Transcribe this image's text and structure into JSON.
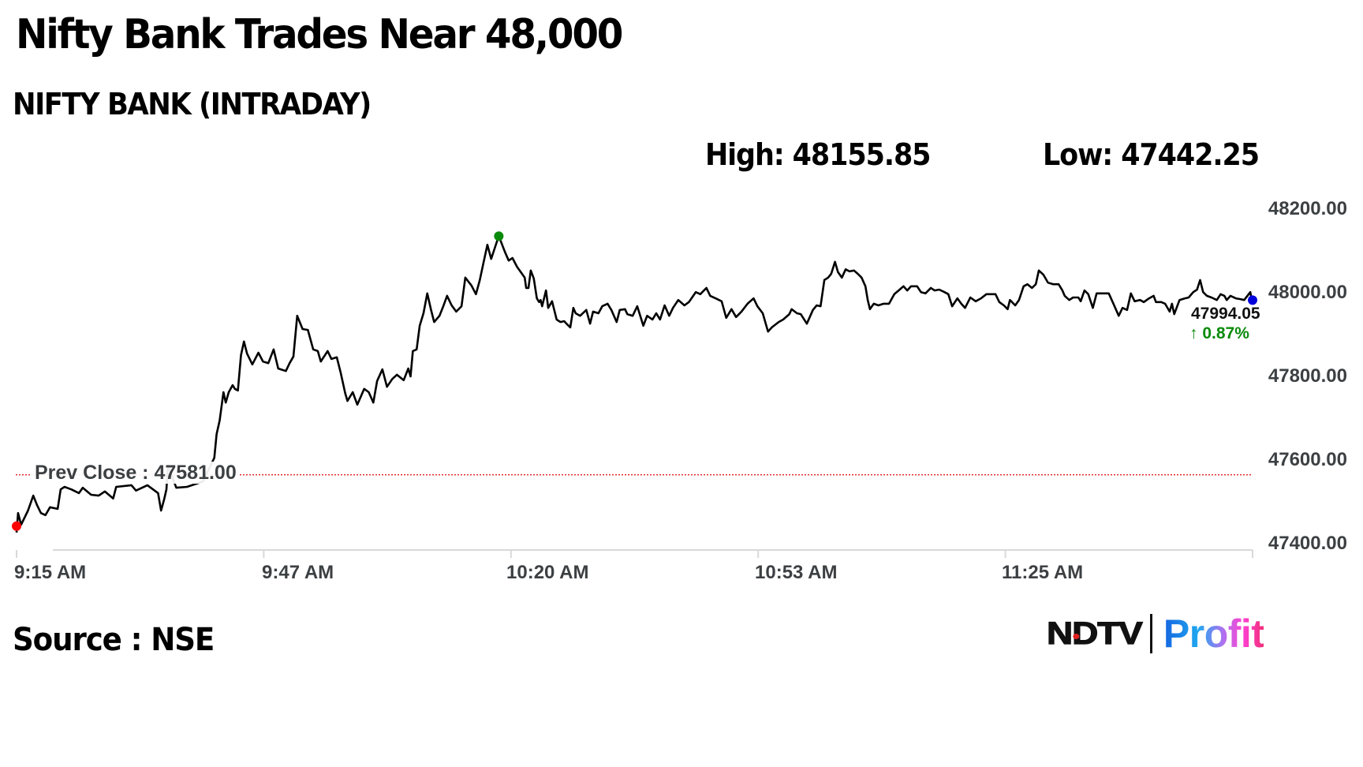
{
  "header": {
    "title": "Nifty Bank Trades Near 48,000",
    "subtitle": "NIFTY BANK (INTRADAY)",
    "high_label": "High: 48155.85",
    "low_label": "Low: 47442.25"
  },
  "chart": {
    "prev_close_label": "Prev Close : 47581.00",
    "current_value": "47994.05",
    "current_change": "↑ 0.87%",
    "colors": {
      "line": "#000000",
      "prev_close_line": "#e02020",
      "low_marker": "#ff0000",
      "high_marker": "#0a8a0a",
      "current_marker": "#0000dd",
      "axis": "#d9d9d9",
      "label_text": "#3c4043",
      "change_up": "#0a8a0a"
    }
  },
  "footer": {
    "source": "Source : NSE",
    "logo_left": "NDTV",
    "logo_right": "Profit"
  },
  "chart_data": {
    "type": "line",
    "title": "NIFTY BANK (INTRADAY)",
    "xlabel": "",
    "ylabel": "",
    "x_tick_labels": [
      "9:15 AM",
      "9:47 AM",
      "10:20 AM",
      "10:53 AM",
      "11:25 AM"
    ],
    "x_tick_minutes": [
      0,
      32.5,
      65,
      97.5,
      130
    ],
    "y_tick_labels": [
      "48200.00",
      "48000.00",
      "47800.00",
      "47600.00",
      "47400.00"
    ],
    "y_ticks": [
      48200,
      48000,
      47800,
      47600,
      47400
    ],
    "ylim": [
      47400,
      48200
    ],
    "grid": false,
    "legend": null,
    "high": 48155.85,
    "low": 47442.25,
    "prev_close": 47581.0,
    "last": 47994.05,
    "change_pct": 0.87,
    "series": [
      {
        "name": "NIFTY BANK",
        "x_unit": "minutes since 9:15 AM",
        "points": [
          [
            0,
            47442
          ],
          [
            0.2,
            47489
          ],
          [
            0.6,
            47461
          ],
          [
            1.5,
            47495
          ],
          [
            2.2,
            47531
          ],
          [
            2.7,
            47508
          ],
          [
            3.2,
            47489
          ],
          [
            3.8,
            47484
          ],
          [
            4.4,
            47503
          ],
          [
            5.4,
            47499
          ],
          [
            5.8,
            47546
          ],
          [
            6.3,
            47552
          ],
          [
            7.2,
            47546
          ],
          [
            8.2,
            47537
          ],
          [
            8.7,
            47550
          ],
          [
            9.8,
            47533
          ],
          [
            10.8,
            47531
          ],
          [
            11.6,
            47541
          ],
          [
            12.7,
            47524
          ],
          [
            13.1,
            47552
          ],
          [
            15.1,
            47556
          ],
          [
            15.7,
            47543
          ],
          [
            17.2,
            47556
          ],
          [
            18.6,
            47537
          ],
          [
            19.0,
            47495
          ],
          [
            19.4,
            47522
          ],
          [
            19.7,
            47546
          ],
          [
            19.9,
            47603
          ],
          [
            21.0,
            47550
          ],
          [
            22.4,
            47552
          ],
          [
            24.5,
            47565
          ],
          [
            26.0,
            47622
          ],
          [
            26.3,
            47679
          ],
          [
            26.7,
            47712
          ],
          [
            27.2,
            47780
          ],
          [
            27.5,
            47755
          ],
          [
            27.9,
            47780
          ],
          [
            28.4,
            47797
          ],
          [
            28.7,
            47788
          ],
          [
            29.1,
            47784
          ],
          [
            29.5,
            47869
          ],
          [
            29.9,
            47902
          ],
          [
            30.3,
            47873
          ],
          [
            31.0,
            47847
          ],
          [
            31.8,
            47875
          ],
          [
            32.4,
            47854
          ],
          [
            33.1,
            47850
          ],
          [
            33.8,
            47883
          ],
          [
            34.4,
            47837
          ],
          [
            35.4,
            47831
          ],
          [
            35.9,
            47850
          ],
          [
            36.4,
            47866
          ],
          [
            36.9,
            47964
          ],
          [
            37.6,
            47932
          ],
          [
            38.3,
            47930
          ],
          [
            39.0,
            47883
          ],
          [
            39.6,
            47879
          ],
          [
            40.0,
            47854
          ],
          [
            40.9,
            47879
          ],
          [
            41.4,
            47860
          ],
          [
            42.1,
            47864
          ],
          [
            42.6,
            47828
          ],
          [
            43.2,
            47778
          ],
          [
            43.5,
            47759
          ],
          [
            44.2,
            47780
          ],
          [
            44.8,
            47750
          ],
          [
            45.7,
            47788
          ],
          [
            46.3,
            47780
          ],
          [
            46.9,
            47755
          ],
          [
            47.4,
            47807
          ],
          [
            48.1,
            47835
          ],
          [
            48.7,
            47793
          ],
          [
            49.4,
            47812
          ],
          [
            50.0,
            47822
          ],
          [
            50.9,
            47809
          ],
          [
            51.5,
            47837
          ],
          [
            51.8,
            47818
          ],
          [
            52.1,
            47879
          ],
          [
            52.6,
            47883
          ],
          [
            53.0,
            47940
          ],
          [
            53.5,
            47970
          ],
          [
            54.0,
            48018
          ],
          [
            54.5,
            47978
          ],
          [
            54.9,
            47949
          ],
          [
            55.6,
            47964
          ],
          [
            56.1,
            47987
          ],
          [
            56.6,
            48012
          ],
          [
            57.2,
            47989
          ],
          [
            57.8,
            47974
          ],
          [
            58.5,
            47987
          ],
          [
            59.0,
            48056
          ],
          [
            59.8,
            48037
          ],
          [
            60.4,
            48016
          ],
          [
            60.9,
            48050
          ],
          [
            61.3,
            48084
          ],
          [
            61.9,
            48135
          ],
          [
            62.4,
            48101
          ],
          [
            63.2,
            48145
          ],
          [
            63.4,
            48155.85
          ],
          [
            64.2,
            48118
          ],
          [
            64.7,
            48097
          ],
          [
            65.2,
            48103
          ],
          [
            65.8,
            48082
          ],
          [
            66.3,
            48069
          ],
          [
            66.8,
            48056
          ],
          [
            67.0,
            48031
          ],
          [
            67.3,
            48031
          ],
          [
            67.6,
            48073
          ],
          [
            68.0,
            48054
          ],
          [
            68.4,
            48006
          ],
          [
            68.7,
            47997
          ],
          [
            68.9,
            48002
          ],
          [
            69.1,
            47987
          ],
          [
            69.6,
            48025
          ],
          [
            69.7,
            48012
          ],
          [
            69.9,
            47983
          ],
          [
            70.4,
            47999
          ],
          [
            71.0,
            47955
          ],
          [
            71.5,
            47949
          ],
          [
            72.0,
            47951
          ],
          [
            72.3,
            47945
          ],
          [
            72.8,
            47936
          ],
          [
            73.2,
            47983
          ],
          [
            73.5,
            47970
          ],
          [
            74.1,
            47964
          ],
          [
            74.9,
            47978
          ],
          [
            75.4,
            47945
          ],
          [
            75.8,
            47974
          ],
          [
            76.5,
            47970
          ],
          [
            77.0,
            47987
          ],
          [
            77.7,
            47993
          ],
          [
            78.2,
            47978
          ],
          [
            78.9,
            47949
          ],
          [
            79.3,
            47978
          ],
          [
            80.0,
            47980
          ],
          [
            80.3,
            47968
          ],
          [
            81.0,
            47964
          ],
          [
            81.6,
            47987
          ],
          [
            82.4,
            47940
          ],
          [
            82.9,
            47964
          ],
          [
            83.6,
            47955
          ],
          [
            84.1,
            47970
          ],
          [
            84.6,
            47955
          ],
          [
            85.2,
            47989
          ],
          [
            85.8,
            47964
          ],
          [
            86.3,
            47983
          ],
          [
            87.0,
            48002
          ],
          [
            87.8,
            47989
          ],
          [
            88.4,
            47997
          ],
          [
            89.3,
            48021
          ],
          [
            89.9,
            48016
          ],
          [
            90.7,
            48031
          ],
          [
            91.2,
            48012
          ],
          [
            91.9,
            48006
          ],
          [
            92.7,
            47999
          ],
          [
            93.3,
            47959
          ],
          [
            94.0,
            47980
          ],
          [
            94.6,
            47961
          ],
          [
            95.3,
            47974
          ],
          [
            96.1,
            47993
          ],
          [
            96.9,
            48006
          ],
          [
            97.4,
            47987
          ],
          [
            98.1,
            47970
          ],
          [
            98.8,
            47926
          ],
          [
            99.3,
            47936
          ],
          [
            100.2,
            47949
          ],
          [
            100.8,
            47955
          ],
          [
            101.6,
            47968
          ],
          [
            101.9,
            47980
          ],
          [
            102.6,
            47970
          ],
          [
            103.1,
            47968
          ],
          [
            103.9,
            47945
          ],
          [
            104.7,
            47978
          ],
          [
            105.2,
            47989
          ],
          [
            105.7,
            47987
          ],
          [
            106.2,
            48050
          ],
          [
            106.7,
            48056
          ],
          [
            107.1,
            48065
          ],
          [
            107.6,
            48094
          ],
          [
            108.0,
            48069
          ],
          [
            108.5,
            48056
          ],
          [
            109.0,
            48076
          ],
          [
            109.5,
            48071
          ],
          [
            110.1,
            48073
          ],
          [
            110.6,
            48065
          ],
          [
            111.1,
            48056
          ],
          [
            111.6,
            48035
          ],
          [
            111.9,
            48002
          ],
          [
            112.2,
            47980
          ],
          [
            112.7,
            47993
          ],
          [
            113.3,
            47989
          ],
          [
            114.0,
            47993
          ],
          [
            114.7,
            47993
          ],
          [
            115.4,
            48016
          ],
          [
            116.1,
            48027
          ],
          [
            116.6,
            48035
          ],
          [
            117.1,
            48025
          ],
          [
            117.6,
            48035
          ],
          [
            118.4,
            48035
          ],
          [
            118.9,
            48021
          ],
          [
            119.5,
            48018
          ],
          [
            120.2,
            48031
          ],
          [
            120.7,
            48025
          ],
          [
            121.3,
            48027
          ],
          [
            122.0,
            48021
          ],
          [
            122.5,
            48016
          ],
          [
            123.0,
            47987
          ],
          [
            123.7,
            48006
          ],
          [
            124.2,
            47993
          ],
          [
            124.7,
            47983
          ],
          [
            125.4,
            48008
          ],
          [
            126.1,
            47999
          ],
          [
            126.8,
            48006
          ],
          [
            127.5,
            48016
          ],
          [
            128.2,
            48016
          ],
          [
            128.7,
            48016
          ],
          [
            129.2,
            47997
          ],
          [
            129.8,
            47989
          ],
          [
            130.3,
            47980
          ],
          [
            130.6,
            48002
          ],
          [
            131.3,
            47989
          ],
          [
            131.8,
            48002
          ],
          [
            132.4,
            48035
          ],
          [
            132.9,
            48040
          ],
          [
            133.5,
            48031
          ],
          [
            134.0,
            48040
          ],
          [
            134.4,
            48073
          ],
          [
            135.0,
            48063
          ],
          [
            135.6,
            48044
          ],
          [
            136.3,
            48040
          ],
          [
            137.0,
            48040
          ],
          [
            137.5,
            48025
          ],
          [
            137.8,
            48012
          ],
          [
            138.4,
            48002
          ],
          [
            138.9,
            48008
          ],
          [
            139.6,
            48008
          ],
          [
            139.9,
            47999
          ],
          [
            140.4,
            48025
          ],
          [
            140.9,
            48016
          ],
          [
            141.5,
            47983
          ],
          [
            142.0,
            48018
          ],
          [
            142.7,
            48018
          ],
          [
            143.6,
            48018
          ],
          [
            144.3,
            47989
          ],
          [
            144.9,
            47964
          ],
          [
            145.4,
            47983
          ],
          [
            146.0,
            47978
          ],
          [
            146.5,
            48018
          ],
          [
            147.0,
            47999
          ],
          [
            147.7,
            48002
          ],
          [
            148.2,
            47997
          ],
          [
            148.9,
            48006
          ],
          [
            149.5,
            48012
          ],
          [
            149.8,
            47997
          ],
          [
            150.5,
            47997
          ],
          [
            151.0,
            47993
          ],
          [
            151.6,
            47974
          ],
          [
            151.9,
            47993
          ],
          [
            152.2,
            47968
          ],
          [
            152.9,
            48002
          ],
          [
            153.6,
            48006
          ],
          [
            154.1,
            48008
          ],
          [
            154.7,
            48021
          ],
          [
            155.2,
            48027
          ],
          [
            155.6,
            48050
          ],
          [
            156.0,
            48021
          ],
          [
            156.5,
            48012
          ],
          [
            157.1,
            48008
          ],
          [
            157.8,
            48002
          ],
          [
            158.3,
            48016
          ],
          [
            158.8,
            48012
          ],
          [
            159.1,
            48002
          ],
          [
            159.6,
            48012
          ],
          [
            160.3,
            48006
          ],
          [
            160.9,
            48004
          ],
          [
            161.4,
            48002
          ],
          [
            162.2,
            48021
          ],
          [
            162.5,
            47994.05
          ]
        ]
      }
    ]
  }
}
